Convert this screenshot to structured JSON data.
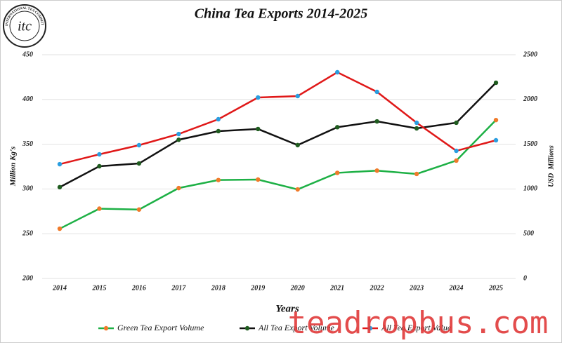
{
  "chart_data": {
    "type": "line",
    "title": "China Tea Exports 2014-2025",
    "x_label": "Years",
    "y_label": "Million Kg's",
    "y2_label": "USD  Millions",
    "categories": [
      "2014",
      "2015",
      "2016",
      "2017",
      "2018",
      "2019",
      "2020",
      "2021",
      "2022",
      "2023",
      "2024",
      "2025"
    ],
    "ylim": [
      200,
      450
    ],
    "yticks": [
      200,
      250,
      300,
      350,
      400,
      450
    ],
    "y2lim": [
      0,
      2500
    ],
    "y2ticks": [
      0,
      500,
      1000,
      1500,
      2000,
      2500
    ],
    "grid": true,
    "legend": "bottom",
    "series": [
      {
        "name": "Green Tea Export Volume",
        "color": "#1db045",
        "marker_color": "#f07a2a",
        "values": [
          255.6,
          278,
          277,
          301,
          310,
          310.5,
          299.5,
          318,
          320.5,
          316.8,
          331.7,
          377
        ]
      },
      {
        "name": "All Tea Export Volume",
        "color": "#111111",
        "marker_color": "#1f5c1f",
        "values": [
          302,
          325.4,
          328.5,
          355,
          364.6,
          367,
          349,
          369,
          375.5,
          367.7,
          374,
          418.7
        ]
      },
      {
        "name": "All Tea Export Value",
        "color": "#e01818",
        "marker_color": "#2a9ee0",
        "axis": "y2",
        "values": [
          1277,
          1387,
          1489,
          1614,
          1779,
          2022,
          2038,
          2304,
          2085,
          1740,
          1426,
          1544
        ]
      }
    ]
  },
  "logo": {
    "text": "itc",
    "ring_text": "INTERNATIONAL TEA COMMITTEE"
  },
  "watermark": "teadropbus.com"
}
